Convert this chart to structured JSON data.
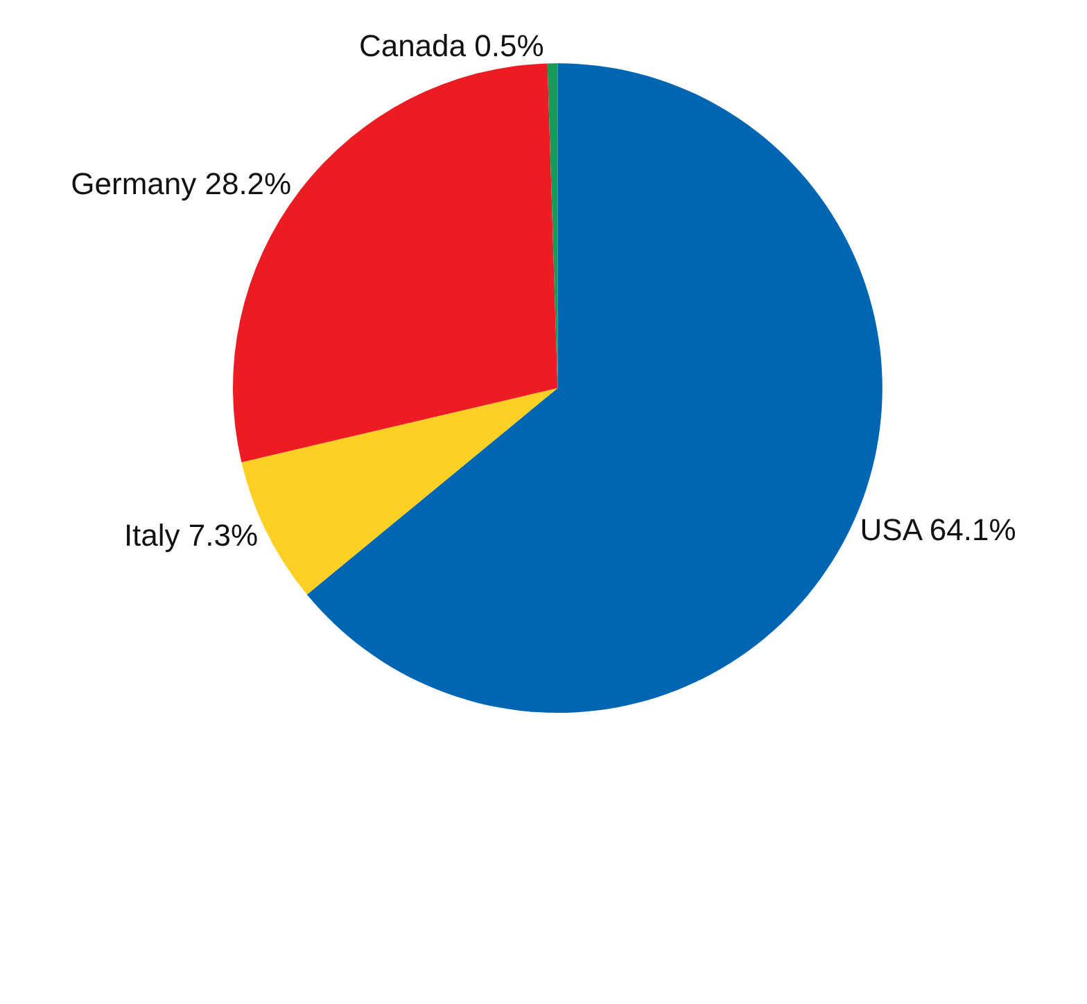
{
  "chart_data": {
    "type": "pie",
    "categories": [
      "USA",
      "Italy",
      "Germany",
      "Canada"
    ],
    "values": [
      64.1,
      7.3,
      28.2,
      0.5
    ],
    "value_labels": [
      "64.1%",
      "7.3%",
      "28.2%",
      "0.5%"
    ],
    "colors": [
      "#0066b3",
      "#fdd023",
      "#ed1c24",
      "#1a9a5a"
    ],
    "legend": false
  }
}
